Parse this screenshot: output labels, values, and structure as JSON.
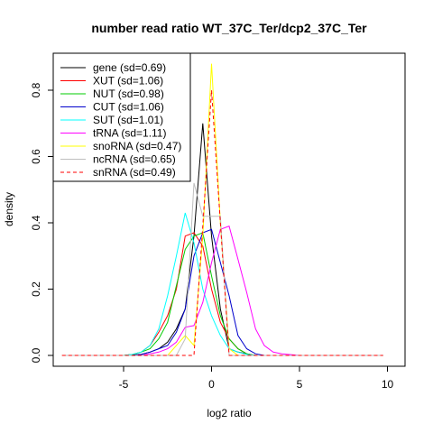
{
  "chart_data": {
    "type": "line",
    "title": "number read ratio WT_37C_Ter/dcp2_37C_Ter",
    "xlabel": "log2 ratio",
    "ylabel": "density",
    "xlim": [
      -9,
      11
    ],
    "ylim": [
      0,
      0.9
    ],
    "xticks": [
      -5,
      0,
      5,
      10
    ],
    "yticks": [
      0.0,
      0.2,
      0.4,
      0.6,
      0.8
    ],
    "xtick_labels": [
      "-5",
      "0",
      "5",
      "10"
    ],
    "ytick_labels": [
      "0.0",
      "0.2",
      "0.4",
      "0.6",
      "0.8"
    ],
    "grid": false,
    "legend_position": "top-left",
    "series": [
      {
        "name": "gene (sd=0.69)",
        "color": "#000000",
        "dash": false,
        "x": [
          -8.5,
          -5,
          -4,
          -3.5,
          -3,
          -2.5,
          -2,
          -1.5,
          -1,
          -0.5,
          0,
          0.5,
          1,
          1.5,
          2,
          2.5,
          3,
          4,
          5,
          9.75
        ],
        "y": [
          0,
          0,
          0.003,
          0.01,
          0.02,
          0.04,
          0.08,
          0.14,
          0.36,
          0.7,
          0.36,
          0.14,
          0.02,
          0.01,
          0.005,
          0,
          0,
          0,
          0,
          0
        ]
      },
      {
        "name": "XUT (sd=1.06)",
        "color": "#ff0000",
        "dash": false,
        "x": [
          -8.5,
          -5,
          -4.5,
          -4,
          -3.5,
          -3,
          -2.5,
          -2,
          -1.5,
          -1,
          -0.5,
          0,
          0.5,
          1,
          1.5,
          2,
          2.5,
          3,
          4,
          9.75
        ],
        "y": [
          0,
          0,
          0.003,
          0.01,
          0.03,
          0.07,
          0.12,
          0.2,
          0.36,
          0.37,
          0.33,
          0.2,
          0.1,
          0.05,
          0.02,
          0.005,
          0,
          0,
          0,
          0
        ]
      },
      {
        "name": "NUT (sd=0.98)",
        "color": "#00cc00",
        "dash": false,
        "x": [
          -8.5,
          -5,
          -4.5,
          -4,
          -3.5,
          -3,
          -2.5,
          -2,
          -1.5,
          -1,
          -0.5,
          0,
          0.5,
          1,
          1.5,
          2,
          2.5,
          3,
          4,
          9.75
        ],
        "y": [
          0,
          0,
          0.003,
          0.01,
          0.02,
          0.05,
          0.1,
          0.21,
          0.32,
          0.36,
          0.37,
          0.24,
          0.12,
          0.05,
          0.02,
          0.005,
          0,
          0,
          0,
          0
        ]
      },
      {
        "name": "CUT (sd=1.06)",
        "color": "#0000cc",
        "dash": false,
        "x": [
          -8.5,
          -5,
          -4.5,
          -4,
          -3.5,
          -3,
          -2.5,
          -2,
          -1.5,
          -1,
          -0.5,
          0,
          0.5,
          1,
          1.5,
          2,
          2.5,
          3,
          4,
          9.75
        ],
        "y": [
          0,
          0,
          0,
          0.003,
          0.01,
          0.02,
          0.03,
          0.07,
          0.14,
          0.3,
          0.37,
          0.38,
          0.28,
          0.18,
          0.06,
          0.02,
          0.005,
          0,
          0,
          0
        ]
      },
      {
        "name": "SUT (sd=1.01)",
        "color": "#00ffff",
        "dash": false,
        "x": [
          -8.5,
          -5,
          -4.5,
          -4,
          -3.5,
          -3,
          -2.5,
          -2,
          -1.5,
          -1,
          -0.5,
          0,
          0.5,
          1,
          1.5,
          2,
          2.5,
          3,
          4,
          9.75
        ],
        "y": [
          0,
          0,
          0.003,
          0.01,
          0.03,
          0.08,
          0.18,
          0.3,
          0.43,
          0.34,
          0.2,
          0.12,
          0.06,
          0.02,
          0.01,
          0.003,
          0,
          0,
          0,
          0
        ]
      },
      {
        "name": "tRNA (sd=1.11)",
        "color": "#ff00ff",
        "dash": false,
        "x": [
          -8.5,
          -4,
          -3.5,
          -3,
          -2.5,
          -2,
          -1.5,
          -1,
          -0.5,
          0,
          0.5,
          1,
          1.5,
          2,
          2.5,
          3,
          3.5,
          4,
          5,
          9.75
        ],
        "y": [
          0,
          0,
          0.005,
          0.01,
          0.02,
          0.04,
          0.085,
          0.09,
          0.16,
          0.28,
          0.38,
          0.39,
          0.29,
          0.19,
          0.08,
          0.03,
          0.01,
          0.005,
          0,
          0
        ]
      },
      {
        "name": "snoRNA (sd=0.47)",
        "color": "#ffff00",
        "dash": false,
        "x": [
          -8.5,
          -2.5,
          -2,
          -1.5,
          -1,
          -0.5,
          0,
          0.5,
          1,
          1.5,
          9.75
        ],
        "y": [
          0,
          0,
          0.03,
          0.06,
          0.03,
          0.36,
          0.88,
          0.4,
          0.02,
          0,
          0
        ]
      },
      {
        "name": "ncRNA (sd=0.65)",
        "color": "#bebebe",
        "dash": false,
        "x": [
          -8.5,
          -2,
          -1.5,
          -1,
          -0.5,
          0,
          0.5,
          1,
          1.5,
          9.75
        ],
        "y": [
          0,
          0,
          0.05,
          0.52,
          0.42,
          0.42,
          0.42,
          0,
          0,
          0
        ]
      },
      {
        "name": "snRNA (sd=0.49)",
        "color": "#ff0000",
        "dash": true,
        "x": [
          -8.5,
          -1,
          -0.5,
          0,
          0.5,
          1,
          9.75
        ],
        "y": [
          0,
          0,
          0.39,
          0.8,
          0.4,
          0,
          0
        ]
      }
    ]
  }
}
